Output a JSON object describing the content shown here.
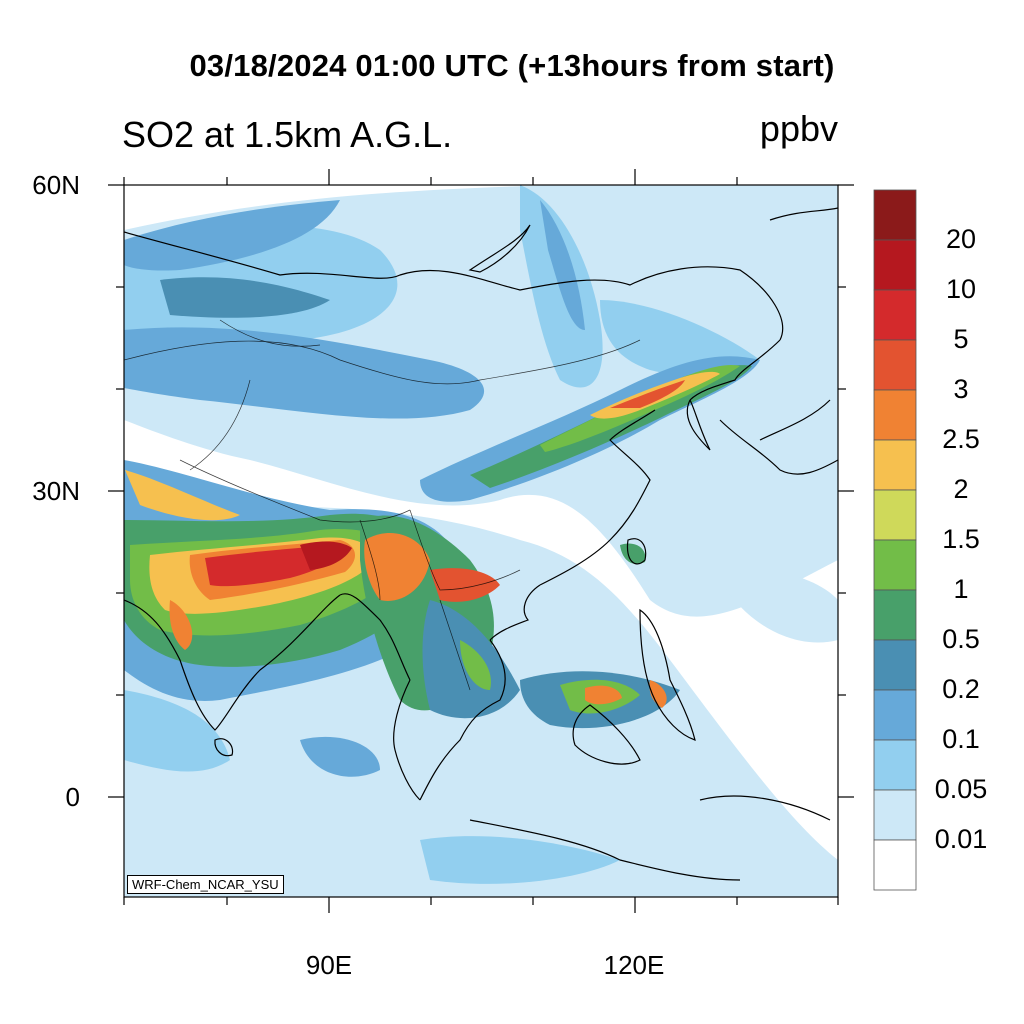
{
  "title": "03/18/2024 01:00 UTC (+13hours from start)",
  "subtitle": "SO2 at 1.5km A.G.L.",
  "units": "ppbv",
  "credit": "WRF-Chem_NCAR_YSU",
  "lat_labels": [
    "60N",
    "30N",
    "0"
  ],
  "lon_labels": [
    "90E",
    "120E"
  ],
  "colorbar": {
    "labels": [
      "20",
      "10",
      "5",
      "3",
      "2.5",
      "2",
      "1.5",
      "1",
      "0.5",
      "0.2",
      "0.1",
      "0.05",
      "0.01"
    ],
    "colors": [
      "#8b1a1a",
      "#b5181f",
      "#d42a2c",
      "#e35330",
      "#f08233",
      "#f6c04f",
      "#cfd95a",
      "#72bd48",
      "#48a06a",
      "#4a8fb3",
      "#66a9d9",
      "#92cfef",
      "#cde8f7",
      "#ffffff"
    ]
  }
}
